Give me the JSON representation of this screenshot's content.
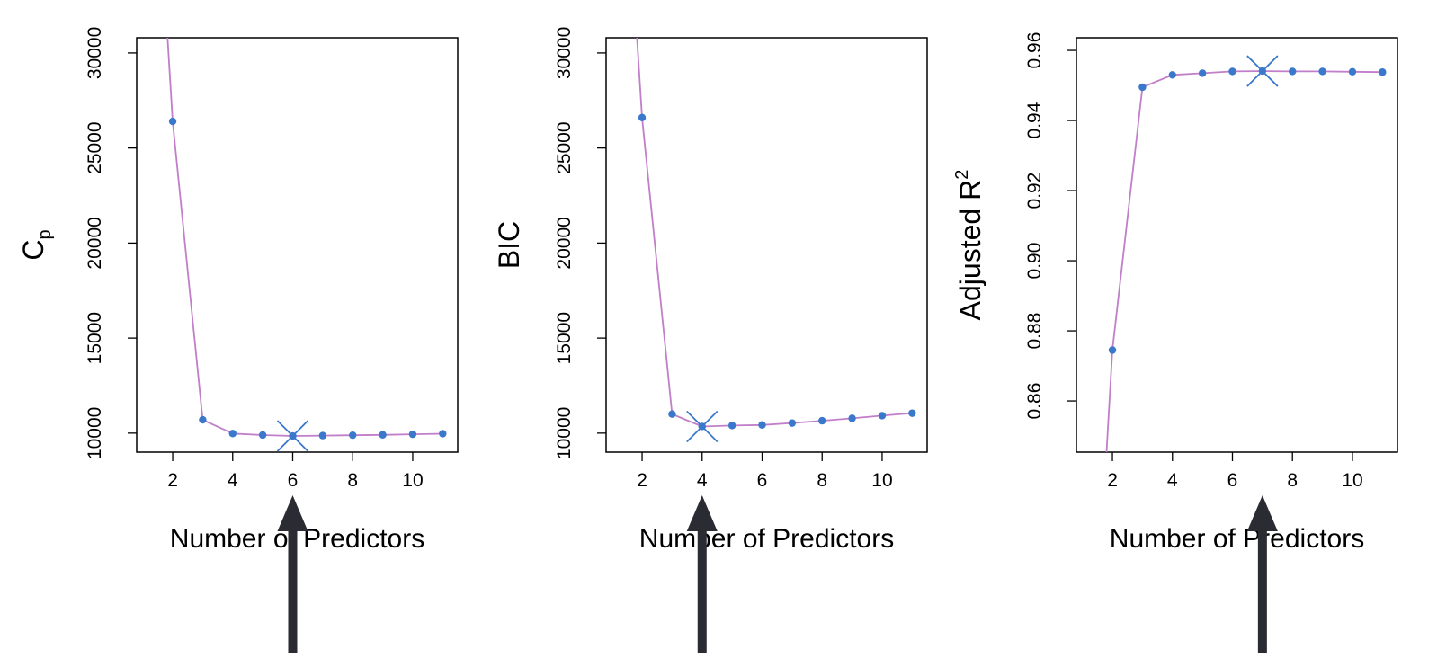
{
  "colors": {
    "line": "#c17ec9",
    "point": "#3a78cc",
    "cross": "#3a78cc",
    "arrow": "#2b2b33",
    "frame": "#000000"
  },
  "chart_data": [
    {
      "type": "line",
      "title": "",
      "xlabel": "Number of Predictors",
      "ylabel": "Cp",
      "ylabel_main": "C",
      "ylabel_sub": "p",
      "ylabel_sup": "",
      "xlim": [
        0.8,
        11.5
      ],
      "ylim": [
        9000,
        30800
      ],
      "xticks": [
        2,
        4,
        6,
        8,
        10
      ],
      "yticks": [
        10000,
        15000,
        20000,
        25000,
        30000
      ],
      "x": [
        1.8,
        2,
        3,
        4,
        5,
        6,
        7,
        8,
        9,
        10,
        11
      ],
      "y": [
        31500,
        26400,
        10700,
        9980,
        9900,
        9850,
        9870,
        9890,
        9910,
        9940,
        9970
      ],
      "points_x": [
        2,
        3,
        4,
        5,
        6,
        7,
        8,
        9,
        10,
        11
      ],
      "points_y": [
        26400,
        10700,
        9980,
        9900,
        9850,
        9870,
        9890,
        9910,
        9940,
        9970
      ],
      "best": {
        "x": 6,
        "y": 9850
      },
      "arrow_x": 6
    },
    {
      "type": "line",
      "title": "",
      "xlabel": "Number of Predictors",
      "ylabel": "BIC",
      "ylabel_main": "BIC",
      "ylabel_sub": "",
      "ylabel_sup": "",
      "xlim": [
        0.8,
        11.5
      ],
      "ylim": [
        9000,
        30800
      ],
      "xticks": [
        2,
        4,
        6,
        8,
        10
      ],
      "yticks": [
        10000,
        15000,
        20000,
        25000,
        30000
      ],
      "x": [
        1.8,
        2,
        3,
        4,
        5,
        6,
        7,
        8,
        9,
        10,
        11
      ],
      "y": [
        31500,
        26600,
        11000,
        10350,
        10400,
        10430,
        10530,
        10650,
        10780,
        10920,
        11050
      ],
      "points_x": [
        2,
        3,
        4,
        5,
        6,
        7,
        8,
        9,
        10,
        11
      ],
      "points_y": [
        26600,
        11000,
        10350,
        10400,
        10430,
        10530,
        10650,
        10780,
        10920,
        11050
      ],
      "best": {
        "x": 4,
        "y": 10350
      },
      "arrow_x": 4
    },
    {
      "type": "line",
      "title": "",
      "xlabel": "Number of Predictors",
      "ylabel": "Adjusted R2",
      "ylabel_main": "Adjusted R",
      "ylabel_sub": "",
      "ylabel_sup": "2",
      "xlim": [
        0.8,
        11.5
      ],
      "ylim": [
        0.8454,
        0.9636
      ],
      "xticks": [
        2,
        4,
        6,
        8,
        10
      ],
      "yticks": [
        0.86,
        0.88,
        0.9,
        0.92,
        0.94,
        0.96
      ],
      "x": [
        1.8,
        2,
        3,
        4,
        5,
        6,
        7,
        8,
        9,
        10,
        11
      ],
      "y": [
        0.845,
        0.8745,
        0.9495,
        0.953,
        0.9535,
        0.954,
        0.9541,
        0.954,
        0.954,
        0.9539,
        0.9538
      ],
      "points_x": [
        2,
        3,
        4,
        5,
        6,
        7,
        8,
        9,
        10,
        11
      ],
      "points_y": [
        0.8745,
        0.9495,
        0.953,
        0.9535,
        0.954,
        0.9541,
        0.954,
        0.954,
        0.9539,
        0.9538
      ],
      "best": {
        "x": 7,
        "y": 0.9541
      },
      "arrow_x": 7
    }
  ]
}
